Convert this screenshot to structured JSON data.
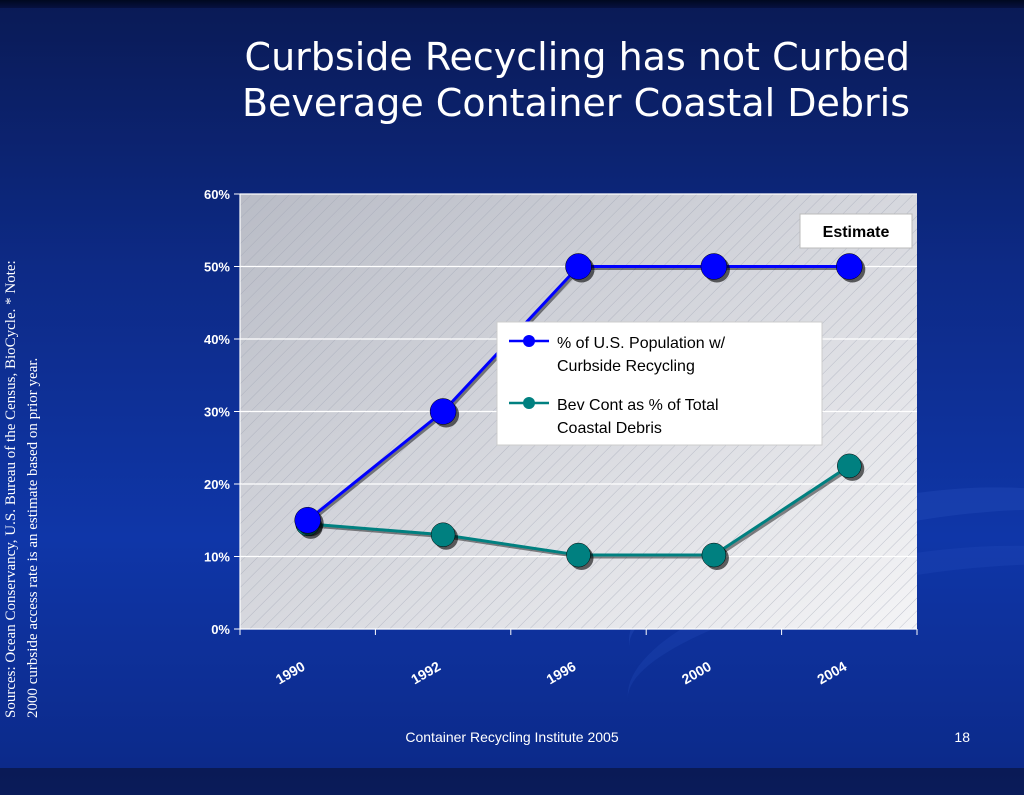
{
  "slide": {
    "title_line1": "Curbside Recycling has not Curbed",
    "title_line2": "Beverage Container Coastal Debris",
    "sources_note": "Sources: Ocean Conservancy, U.S. Bureau of the Census, BioCycle. * Note: 2000 curbside access rate is an estimate based on prior year.",
    "footer_text": "Container Recycling Institute   2005",
    "page_number": "18"
  },
  "chart_data": {
    "type": "line",
    "x": [
      "1990",
      "1992",
      "1996",
      "2000",
      "2004"
    ],
    "ylim": [
      0,
      60
    ],
    "y_ticks": [
      "0%",
      "10%",
      "20%",
      "30%",
      "40%",
      "50%",
      "60%"
    ],
    "grid": true,
    "annotation": "Estimate",
    "legend_placement": "center-right",
    "series": [
      {
        "name": "% of U.S. Population w/ Curbside Recycling",
        "name_lines": [
          "% of U.S. Population w/",
          "Curbside Recycling"
        ],
        "values": [
          15,
          30,
          50,
          50,
          50
        ],
        "color": "#0000ff"
      },
      {
        "name": "Bev Cont as % of Total Coastal Debris",
        "name_lines": [
          "Bev Cont as % of Total",
          "Coastal Debris"
        ],
        "values": [
          14.5,
          13,
          10.2,
          10.2,
          22.5
        ],
        "color": "#008080"
      }
    ]
  }
}
